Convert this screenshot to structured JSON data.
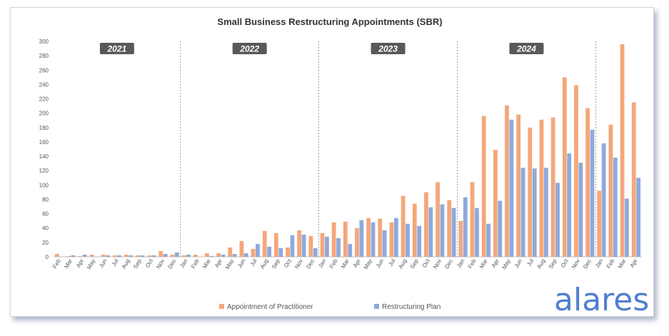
{
  "chart_data": {
    "type": "bar",
    "title": "Small Business Restructuring Appointments (SBR)",
    "xlabel": "",
    "ylabel": "",
    "ylim": [
      0,
      300
    ],
    "yticks": [
      0,
      20,
      40,
      60,
      80,
      100,
      120,
      140,
      160,
      180,
      200,
      220,
      240,
      260,
      280,
      300
    ],
    "grid": false,
    "legend_position": "bottom",
    "categories": [
      "Feb",
      "Mar",
      "Apr",
      "May",
      "Jun",
      "Jul",
      "Aug",
      "Sep",
      "Oct",
      "Nov",
      "Dec",
      "Jan",
      "Feb",
      "Mar",
      "Apr",
      "May",
      "Jun",
      "Jul",
      "Aug",
      "Sep",
      "Oct",
      "Nov",
      "Dec",
      "Jan",
      "Feb",
      "Mar",
      "Apr",
      "May",
      "Jun",
      "Jul",
      "Aug",
      "Sep",
      "Oct",
      "Nov",
      "Dec",
      "Jan",
      "Feb",
      "Mar",
      "Apr",
      "May",
      "Jun",
      "Jul",
      "Aug",
      "Sep",
      "Oct",
      "Nov",
      "Dec",
      "Jan",
      "Feb",
      "Mar",
      "Apr"
    ],
    "series": [
      {
        "name": "Appointment of Practitioner",
        "color": "#f4a77a",
        "values": [
          4,
          1,
          1,
          3,
          3,
          2,
          3,
          2,
          2,
          8,
          3,
          2,
          3,
          5,
          5,
          13,
          22,
          11,
          36,
          33,
          13,
          37,
          29,
          33,
          48,
          49,
          40,
          54,
          53,
          48,
          85,
          74,
          90,
          104,
          79,
          50,
          104,
          196,
          149,
          211,
          198,
          180,
          191,
          194,
          250,
          239,
          207,
          92,
          184,
          296,
          215
        ]
      },
      {
        "name": "Restructuring Plan",
        "color": "#8eaadc",
        "values": [
          0,
          2,
          3,
          0,
          2,
          2,
          2,
          2,
          2,
          4,
          6,
          3,
          0,
          1,
          3,
          4,
          5,
          18,
          14,
          12,
          30,
          31,
          12,
          28,
          26,
          18,
          51,
          48,
          37,
          54,
          46,
          43,
          69,
          73,
          68,
          83,
          68,
          46,
          78,
          191,
          124,
          123,
          124,
          103,
          144,
          131,
          177,
          158,
          138,
          81,
          110
        ]
      }
    ],
    "year_labels": [
      {
        "label": "2021",
        "start_index": 0,
        "end_index": 10
      },
      {
        "label": "2022",
        "start_index": 11,
        "end_index": 22
      },
      {
        "label": "2023",
        "start_index": 23,
        "end_index": 34
      },
      {
        "label": "2024",
        "start_index": 35,
        "end_index": 46
      }
    ],
    "year_dividers_after_index": [
      10,
      22,
      34,
      46
    ],
    "brand_text": "alares"
  }
}
